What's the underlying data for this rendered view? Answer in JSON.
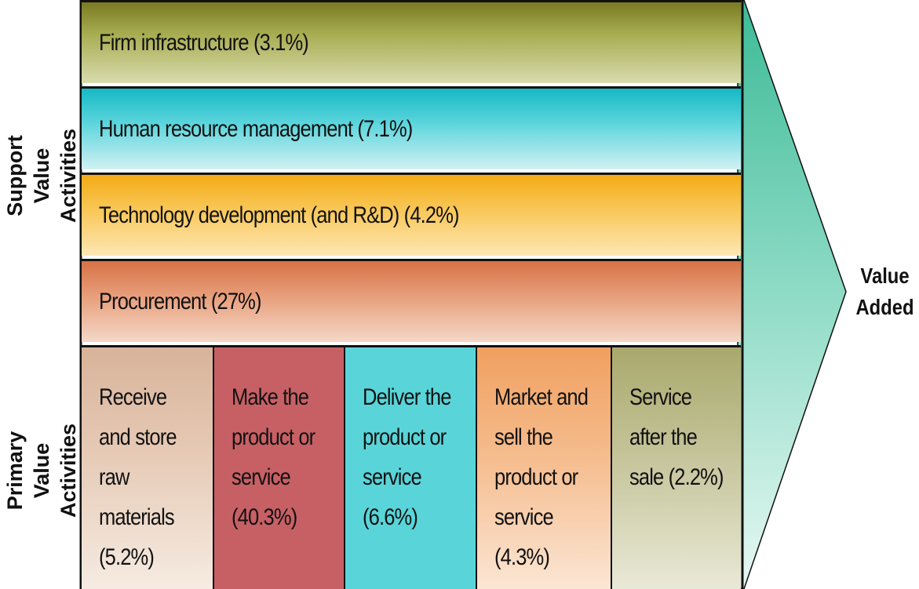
{
  "support_label": "Support\nValue\nActivities",
  "primary_label": "Primary\nValue\nActivities",
  "value_added": "Value\nAdded",
  "support_activities": [
    {
      "label": "Firm infrastructure (3.1%)",
      "share_percent": 3.1
    },
    {
      "label": "Human resource management (7.1%)",
      "share_percent": 7.1
    },
    {
      "label": "Technology development (and R&D) (4.2%)",
      "share_percent": 4.2
    },
    {
      "label": "Procurement (27%)",
      "share_percent": 27
    }
  ],
  "primary_activities": [
    {
      "label": "Receive\nand store\nraw\nmaterials\n(5.2%)",
      "share_percent": 5.2
    },
    {
      "label": "Make the\nproduct or\nservice\n(40.3%)",
      "share_percent": 40.3
    },
    {
      "label": "Deliver the\nproduct or\nservice\n(6.6%)",
      "share_percent": 6.6
    },
    {
      "label": "Market and\nsell the\nproduct or\nservice\n(4.3%)",
      "share_percent": 4.3
    },
    {
      "label": "Service\nafter the\nsale (2.2%)",
      "share_percent": 2.2
    }
  ],
  "colors": {
    "arrow_top": "#4fc4a0",
    "arrow_bottom": "#e8f8f4",
    "outline": "#111111"
  }
}
